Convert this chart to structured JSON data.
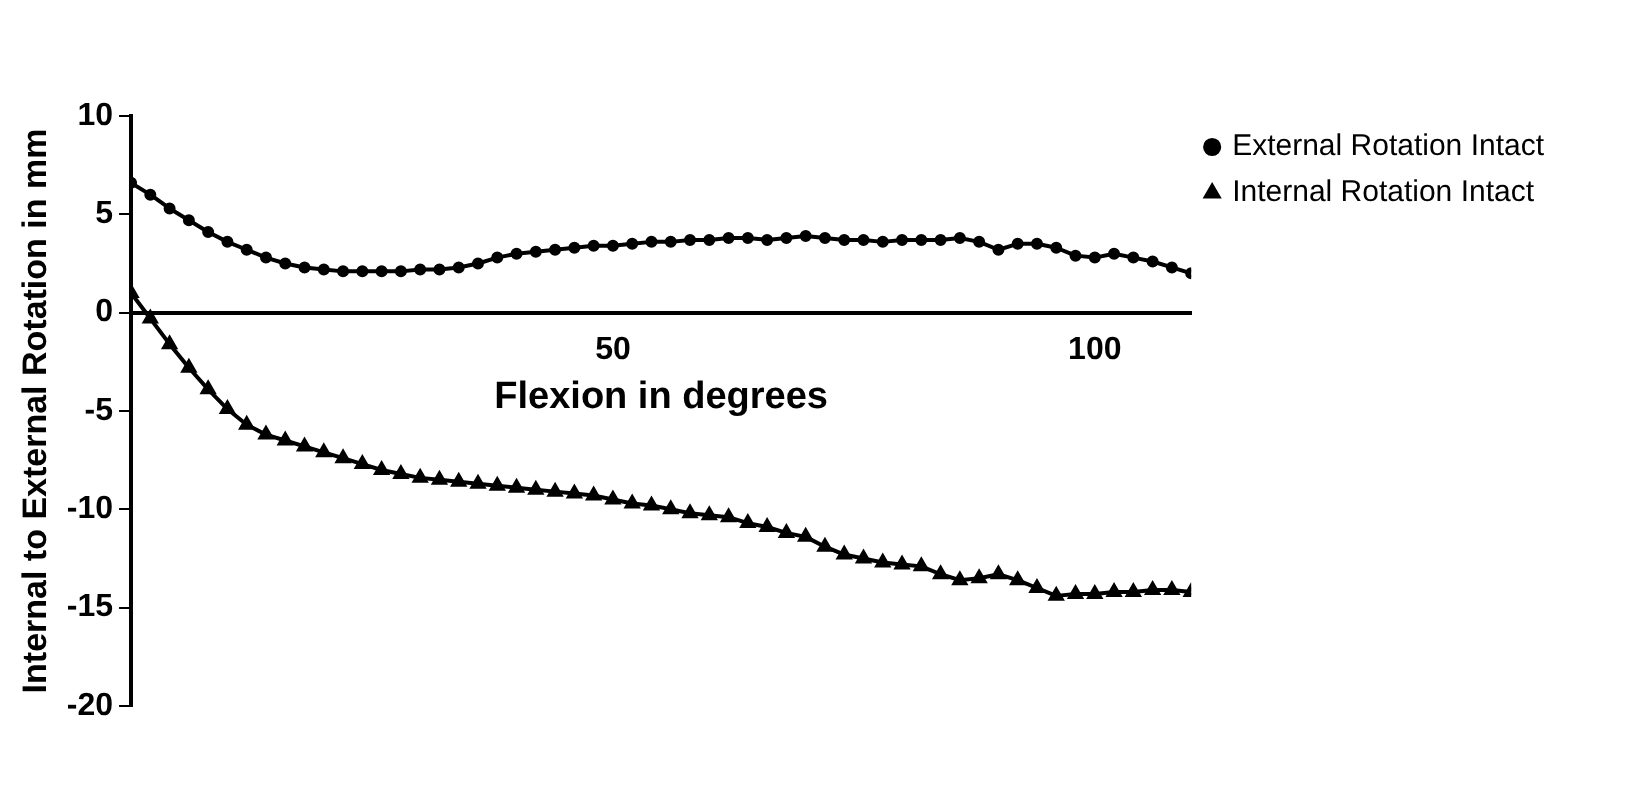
{
  "chart_data": {
    "type": "line",
    "xlabel": "Flexion in degrees",
    "ylabel": "Internal to External Rotation in mm",
    "x": [
      0,
      2,
      4,
      6,
      8,
      10,
      12,
      14,
      16,
      18,
      20,
      22,
      24,
      26,
      28,
      30,
      32,
      34,
      36,
      38,
      40,
      42,
      44,
      46,
      48,
      50,
      52,
      54,
      56,
      58,
      60,
      62,
      64,
      66,
      68,
      70,
      72,
      74,
      76,
      78,
      80,
      82,
      84,
      86,
      88,
      90,
      92,
      94,
      96,
      98,
      100,
      102,
      104,
      106,
      108,
      110
    ],
    "series": [
      {
        "name": "External Rotation Intact",
        "color": "#000000",
        "marker": "circle",
        "values": [
          6.6,
          6.0,
          5.3,
          4.7,
          4.1,
          3.6,
          3.2,
          2.8,
          2.5,
          2.3,
          2.2,
          2.1,
          2.1,
          2.1,
          2.1,
          2.2,
          2.2,
          2.3,
          2.5,
          2.8,
          3.0,
          3.1,
          3.2,
          3.3,
          3.4,
          3.4,
          3.5,
          3.6,
          3.6,
          3.7,
          3.7,
          3.8,
          3.8,
          3.7,
          3.8,
          3.9,
          3.8,
          3.7,
          3.7,
          3.6,
          3.7,
          3.7,
          3.7,
          3.8,
          3.6,
          3.2,
          3.5,
          3.5,
          3.3,
          2.9,
          2.8,
          3.0,
          2.8,
          2.6,
          2.3,
          2.0
        ]
      },
      {
        "name": "Internal Rotation Intact",
        "color": "#000000",
        "marker": "triangle",
        "values": [
          1.0,
          -0.3,
          -1.6,
          -2.8,
          -3.9,
          -4.9,
          -5.7,
          -6.2,
          -6.5,
          -6.8,
          -7.1,
          -7.4,
          -7.7,
          -8.0,
          -8.2,
          -8.4,
          -8.5,
          -8.6,
          -8.7,
          -8.8,
          -8.9,
          -9.0,
          -9.1,
          -9.2,
          -9.3,
          -9.5,
          -9.7,
          -9.8,
          -10.0,
          -10.2,
          -10.3,
          -10.4,
          -10.7,
          -10.9,
          -11.2,
          -11.4,
          -11.9,
          -12.3,
          -12.5,
          -12.7,
          -12.8,
          -12.9,
          -13.3,
          -13.6,
          -13.5,
          -13.3,
          -13.6,
          -14.0,
          -14.4,
          -14.3,
          -14.3,
          -14.2,
          -14.2,
          -14.1,
          -14.1,
          -14.2
        ]
      }
    ],
    "xlim": [
      0,
      110
    ],
    "xticks": [
      50,
      100
    ],
    "ylim": [
      -20,
      10
    ],
    "yticks": [
      -20,
      -15,
      -10,
      -5,
      0,
      5,
      10
    ],
    "grid": false,
    "legend": "top right",
    "line_style": "solid"
  }
}
